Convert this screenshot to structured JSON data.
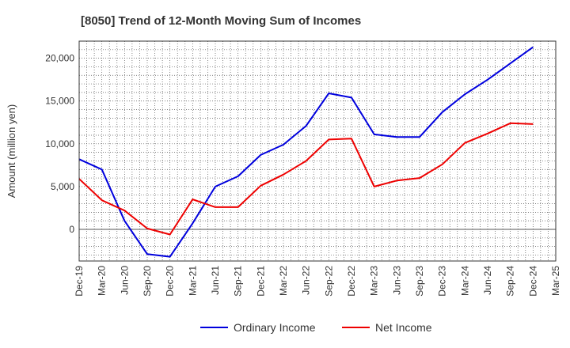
{
  "chart_data": {
    "type": "line",
    "title": "[8050]  Trend of 12-Month Moving Sum of Incomes",
    "xlabel": "",
    "ylabel": "Amount (million yen)",
    "ylim": [
      -3700,
      22000
    ],
    "yticks": [
      0,
      5000,
      10000,
      15000,
      20000
    ],
    "ytick_labels": [
      "0",
      "5,000",
      "10,000",
      "15,000",
      "20,000"
    ],
    "grid": true,
    "legend_position": "bottom",
    "categories": [
      "Dec-19",
      "Mar-20",
      "Jun-20",
      "Sep-20",
      "Dec-20",
      "Mar-21",
      "Jun-21",
      "Sep-21",
      "Dec-21",
      "Mar-22",
      "Jun-22",
      "Sep-22",
      "Dec-22",
      "Mar-23",
      "Jun-23",
      "Sep-23",
      "Dec-23",
      "Mar-24",
      "Jun-24",
      "Sep-24",
      "Dec-24",
      "Mar-25"
    ],
    "series": [
      {
        "name": "Ordinary Income",
        "color": "#0000dd",
        "values": [
          8200,
          7000,
          1000,
          -2900,
          -3200,
          700,
          5000,
          6200,
          8700,
          9900,
          12100,
          15900,
          15400,
          11100,
          10800,
          10800,
          13700,
          15800,
          17500,
          19400,
          21300,
          null
        ]
      },
      {
        "name": "Net Income",
        "color": "#ee0000",
        "values": [
          5900,
          3400,
          2200,
          100,
          -600,
          3500,
          2600,
          2600,
          5100,
          6400,
          8000,
          10500,
          10600,
          5000,
          5700,
          6000,
          7600,
          10100,
          11200,
          12400,
          12300,
          null
        ]
      }
    ]
  }
}
